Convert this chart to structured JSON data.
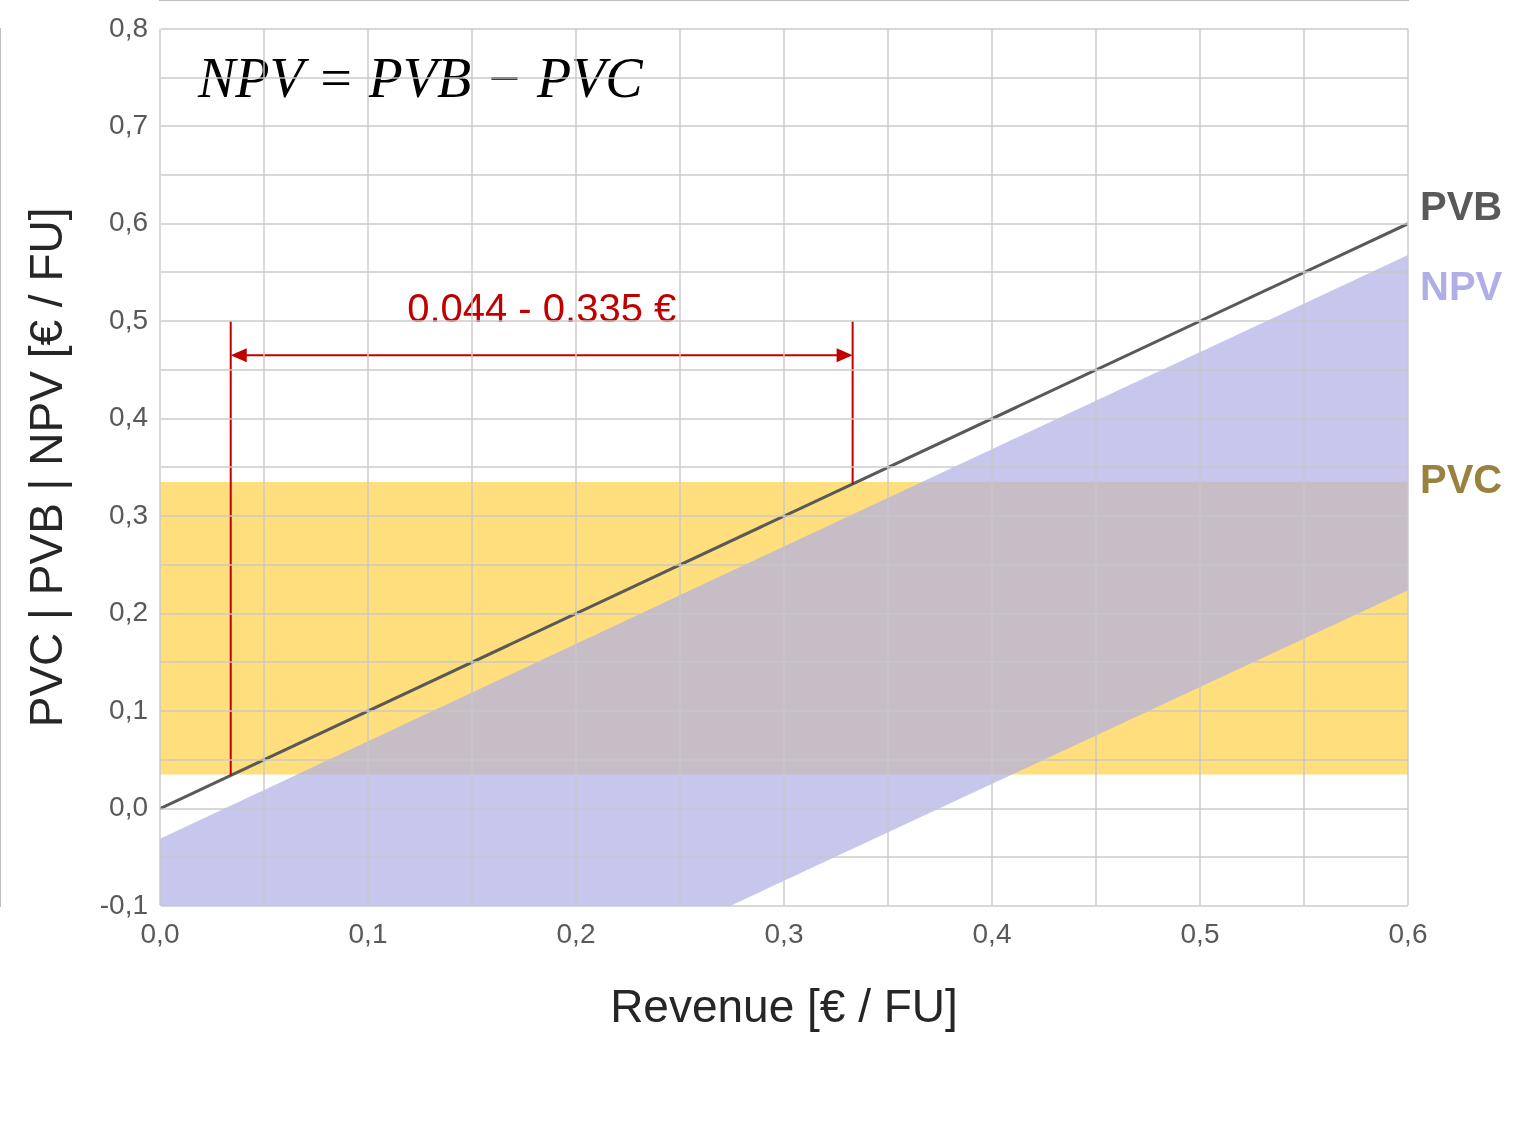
{
  "chart_data": {
    "type": "line",
    "xlabel": "Revenue [€ / FU]",
    "ylabel": "PVC | PVB | NPV [€ / FU]",
    "xlim": [
      0,
      0.6
    ],
    "ylim": [
      -0.1,
      0.8
    ],
    "xticks": [
      {
        "value": 0,
        "label": "0,0"
      },
      {
        "value": 0.05,
        "label": null
      },
      {
        "value": 0.1,
        "label": "0,1"
      },
      {
        "value": 0.15,
        "label": null
      },
      {
        "value": 0.2,
        "label": "0,2"
      },
      {
        "value": 0.25,
        "label": null
      },
      {
        "value": 0.3,
        "label": "0,3"
      },
      {
        "value": 0.35,
        "label": null
      },
      {
        "value": 0.4,
        "label": "0,4"
      },
      {
        "value": 0.45,
        "label": null
      },
      {
        "value": 0.5,
        "label": "0,5"
      },
      {
        "value": 0.55,
        "label": null
      },
      {
        "value": 0.6,
        "label": "0,6"
      }
    ],
    "yticks": [
      {
        "value": -0.1,
        "label": "-0,1"
      },
      {
        "value": -0.05,
        "label": null
      },
      {
        "value": 0,
        "label": "0,0"
      },
      {
        "value": 0.05,
        "label": null
      },
      {
        "value": 0.1,
        "label": "0,1"
      },
      {
        "value": 0.15,
        "label": null
      },
      {
        "value": 0.2,
        "label": "0,2"
      },
      {
        "value": 0.25,
        "label": null
      },
      {
        "value": 0.3,
        "label": "0,3"
      },
      {
        "value": 0.35,
        "label": null
      },
      {
        "value": 0.4,
        "label": "0,4"
      },
      {
        "value": 0.45,
        "label": null
      },
      {
        "value": 0.5,
        "label": "0,5"
      },
      {
        "value": 0.55,
        "label": null
      },
      {
        "value": 0.6,
        "label": "0,6"
      },
      {
        "value": 0.65,
        "label": null
      },
      {
        "value": 0.7,
        "label": "0,7"
      },
      {
        "value": 0.75,
        "label": null
      },
      {
        "value": 0.8,
        "label": "0,8"
      }
    ],
    "grid": true,
    "legend": false,
    "series": [
      {
        "name": "PVB",
        "color": "#595959",
        "x": [
          0,
          0.6
        ],
        "values": [
          0,
          0.6
        ]
      },
      {
        "name": "NPV",
        "color": "#afaee6",
        "x": [
          0,
          0.274,
          0.6
        ],
        "values": [
          null,
          null,
          null
        ],
        "lower": [
          -0.1,
          -0.1,
          0.224
        ],
        "upper": [
          -0.031,
          0.243,
          0.568
        ]
      }
    ],
    "bands": [
      {
        "axis": "y",
        "from": 0.035,
        "to": 0.335,
        "label": "PVC",
        "color": "#ffd966"
      }
    ],
    "ref_lines": [
      {
        "axis": "x",
        "value": 0.034,
        "color": "#c00000"
      },
      {
        "axis": "x",
        "value": 0.333,
        "color": "#c00000"
      }
    ],
    "annotations": [
      "NPV = PVB − PVC",
      "0.044 - 0.335 €"
    ]
  }
}
